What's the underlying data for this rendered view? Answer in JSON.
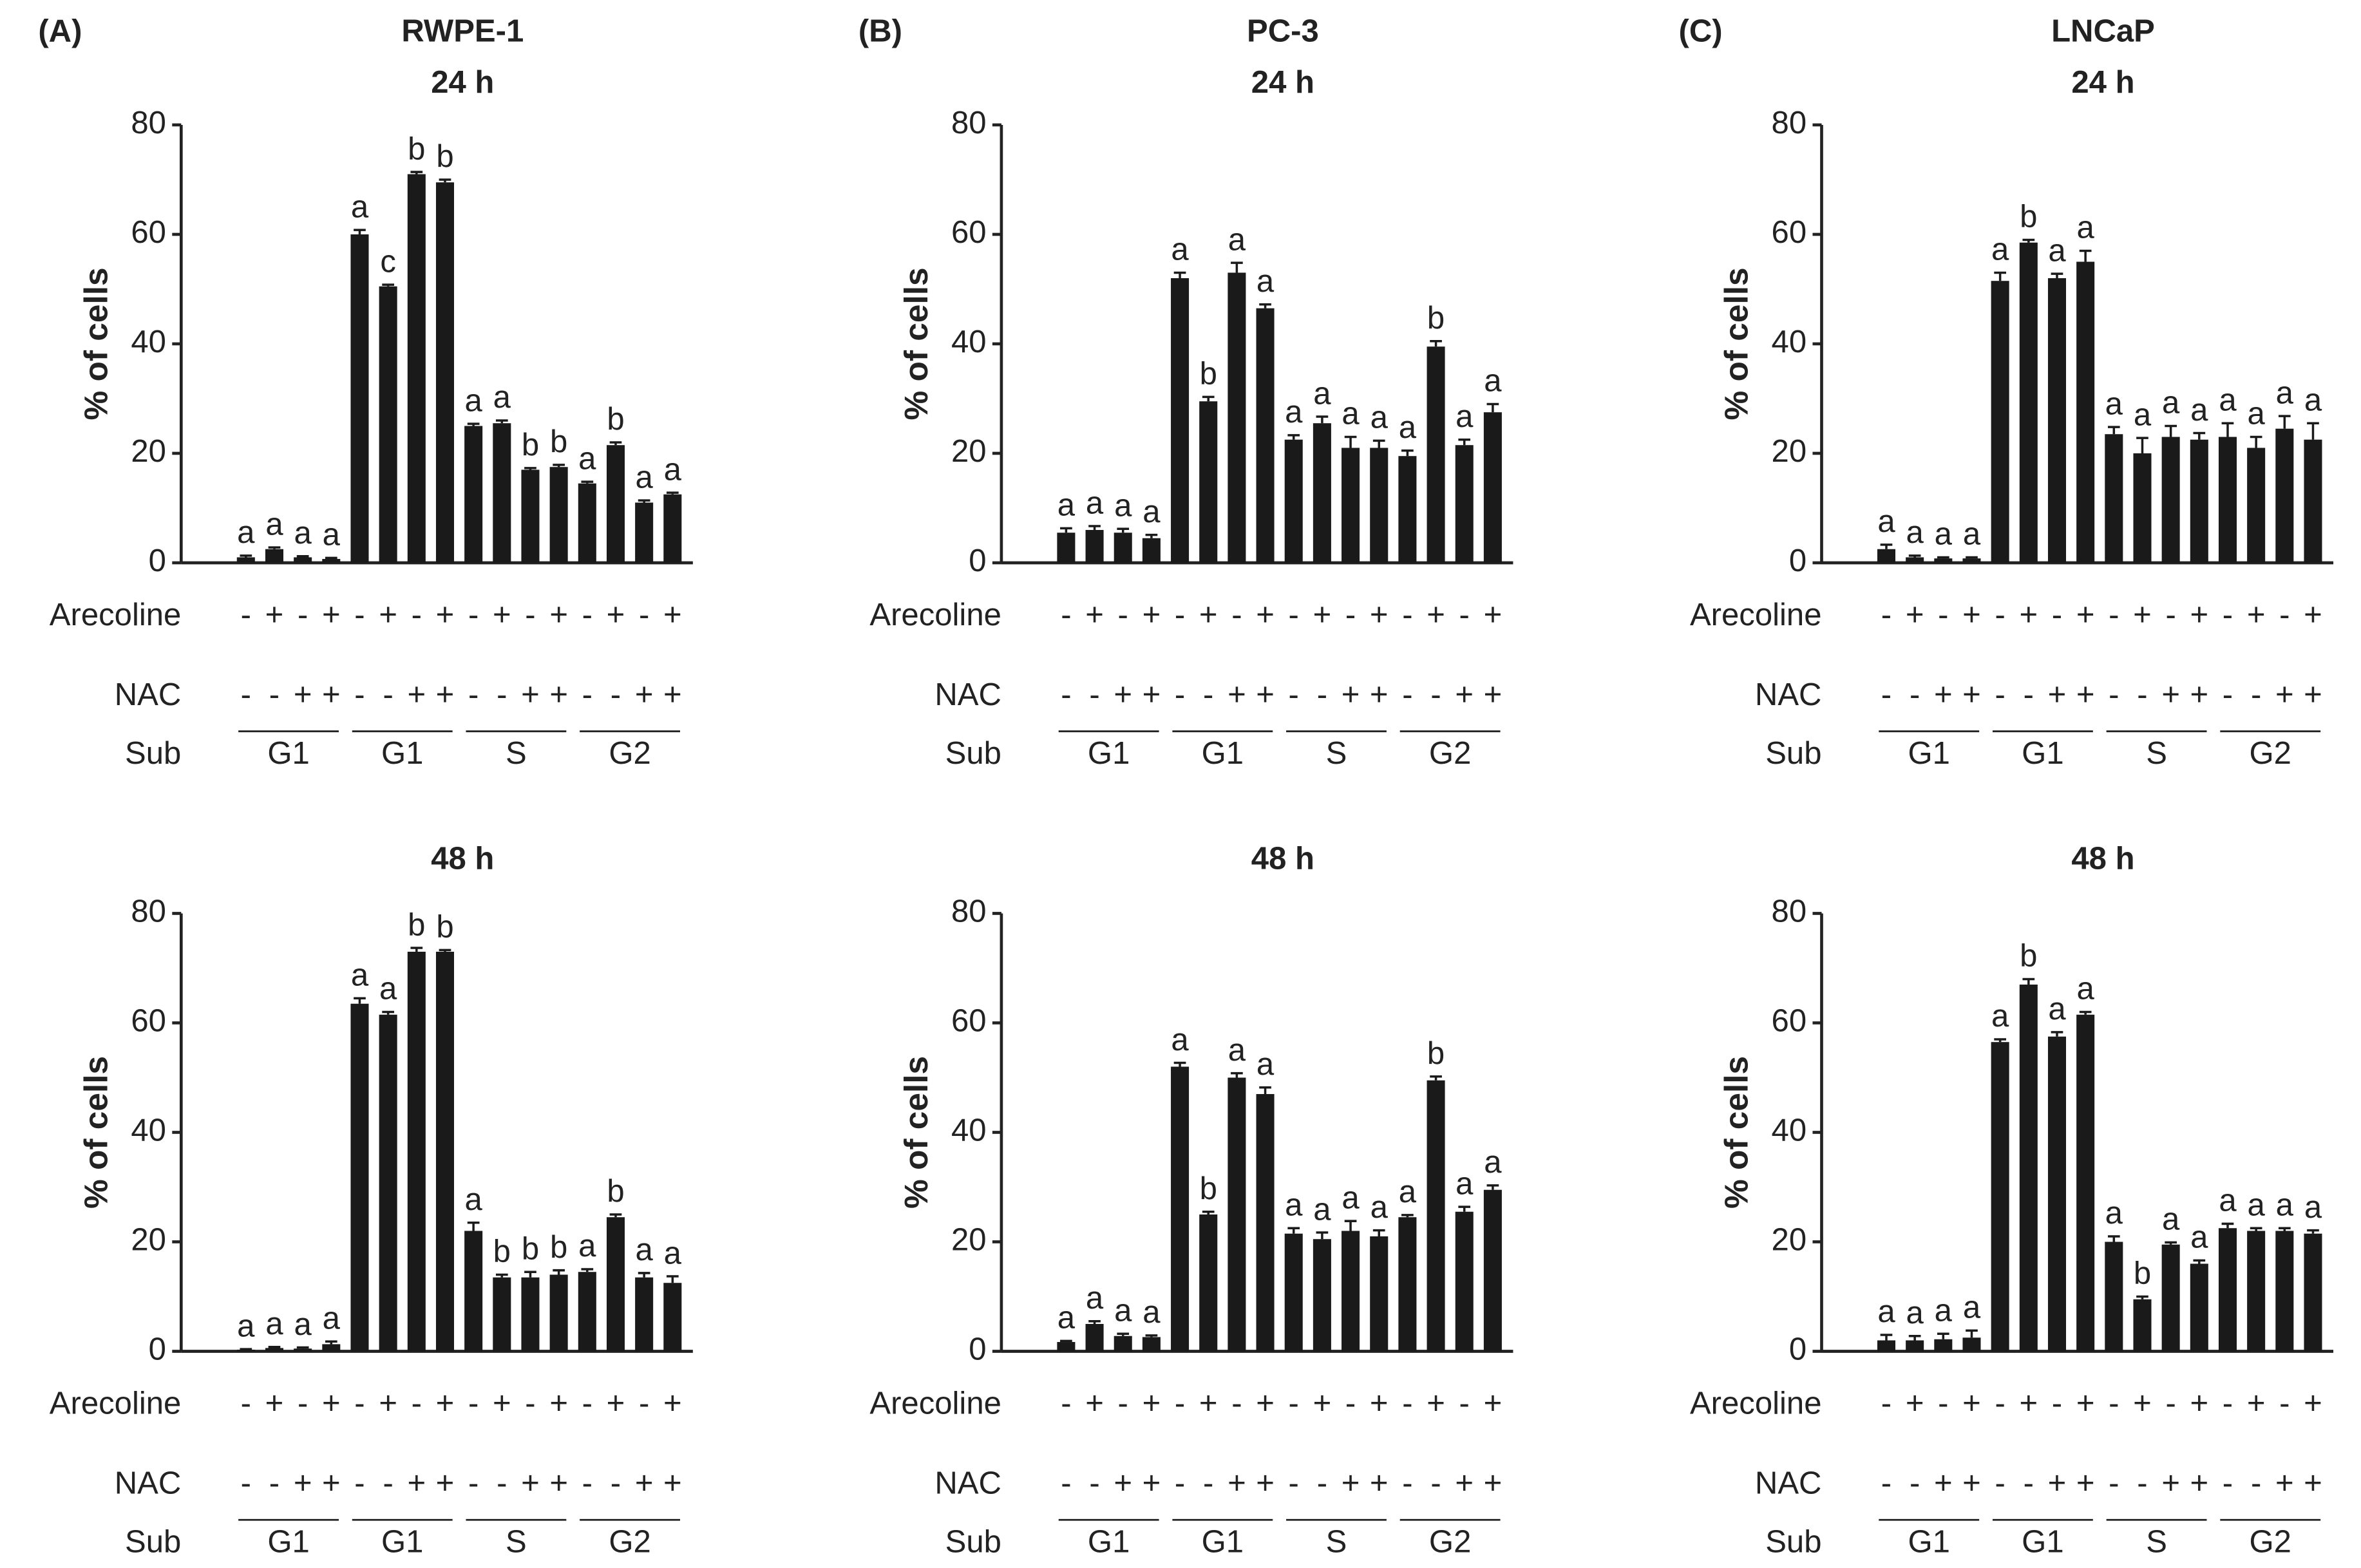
{
  "chart_data": [
    {
      "type": "bar",
      "panel": "(A)",
      "title": "RWPE-1",
      "subtitle": "24 h",
      "ylabel": "% of cells",
      "ylim": [
        0,
        80
      ],
      "yticks": [
        0,
        20,
        40,
        60,
        80
      ],
      "color": "#1a1a1a",
      "values": [
        1,
        2.5,
        1,
        0.7,
        60,
        50.5,
        71,
        69.5,
        25,
        25.5,
        17,
        17.5,
        14.5,
        21.5,
        11,
        12.5
      ],
      "errors": [
        0.3,
        0.3,
        0.2,
        0.2,
        0.8,
        0.3,
        0.4,
        0.5,
        0.4,
        0.5,
        0.3,
        0.4,
        0.3,
        0.5,
        0.4,
        0.3
      ],
      "letters": [
        "a",
        "a",
        "a",
        "a",
        "a",
        "c",
        "b",
        "b",
        "a",
        "a",
        "b",
        "b",
        "a",
        "b",
        "a",
        "a"
      ],
      "arecoline": [
        "-",
        "+",
        "-",
        "+",
        "-",
        "+",
        "-",
        "+",
        "-",
        "+",
        "-",
        "+",
        "-",
        "+",
        "-",
        "+"
      ],
      "nac": [
        "-",
        "-",
        "+",
        "+",
        "-",
        "-",
        "+",
        "+",
        "-",
        "-",
        "+",
        "+",
        "-",
        "-",
        "+",
        "+"
      ],
      "row_labels": [
        "Arecoline",
        "NAC",
        "Sub"
      ],
      "groups": [
        "G1",
        "G1",
        "S",
        "G2"
      ]
    },
    {
      "type": "bar",
      "panel": "(B)",
      "title": "PC-3",
      "subtitle": "24 h",
      "ylabel": "% of cells",
      "ylim": [
        0,
        80
      ],
      "yticks": [
        0,
        20,
        40,
        60,
        80
      ],
      "color": "#1a1a1a",
      "values": [
        5.5,
        6,
        5.5,
        4.5,
        52,
        29.5,
        53,
        46.5,
        22.5,
        25.5,
        21,
        21,
        19.5,
        39.5,
        21.5,
        27.5
      ],
      "errors": [
        0.8,
        0.7,
        0.7,
        0.6,
        1,
        0.8,
        1.8,
        0.7,
        0.8,
        1.2,
        2,
        1.3,
        1,
        1,
        1,
        1.5
      ],
      "letters": [
        "a",
        "a",
        "a",
        "a",
        "a",
        "b",
        "a",
        "a",
        "a",
        "a",
        "a",
        "a",
        "a",
        "b",
        "a",
        "a"
      ],
      "arecoline": [
        "-",
        "+",
        "-",
        "+",
        "-",
        "+",
        "-",
        "+",
        "-",
        "+",
        "-",
        "+",
        "-",
        "+",
        "-",
        "+"
      ],
      "nac": [
        "-",
        "-",
        "+",
        "+",
        "-",
        "-",
        "+",
        "+",
        "-",
        "-",
        "+",
        "+",
        "-",
        "-",
        "+",
        "+"
      ],
      "row_labels": [
        "Arecoline",
        "NAC",
        "Sub"
      ],
      "groups": [
        "G1",
        "G1",
        "S",
        "G2"
      ]
    },
    {
      "type": "bar",
      "panel": "(C)",
      "title": "LNCaP",
      "subtitle": "24 h",
      "ylabel": "% of cells",
      "ylim": [
        0,
        80
      ],
      "yticks": [
        0,
        20,
        40,
        60,
        80
      ],
      "color": "#1a1a1a",
      "values": [
        2.5,
        1,
        0.8,
        0.8,
        51.5,
        58.5,
        52,
        55,
        23.5,
        20,
        23,
        22.5,
        23,
        21,
        24.5,
        22.5
      ],
      "errors": [
        0.8,
        0.3,
        0.2,
        0.2,
        1.5,
        0.5,
        0.8,
        2,
        1.3,
        2.8,
        2,
        1.2,
        2.5,
        2,
        2.3,
        3
      ],
      "letters": [
        "a",
        "a",
        "a",
        "a",
        "a",
        "b",
        "a",
        "a",
        "a",
        "a",
        "a",
        "a",
        "a",
        "a",
        "a",
        "a"
      ],
      "arecoline": [
        "-",
        "+",
        "-",
        "+",
        "-",
        "+",
        "-",
        "+",
        "-",
        "+",
        "-",
        "+",
        "-",
        "+",
        "-",
        "+"
      ],
      "nac": [
        "-",
        "-",
        "+",
        "+",
        "-",
        "-",
        "+",
        "+",
        "-",
        "-",
        "+",
        "+",
        "-",
        "-",
        "+",
        "+"
      ],
      "row_labels": [
        "Arecoline",
        "NAC",
        "Sub"
      ],
      "groups": [
        "G1",
        "G1",
        "S",
        "G2"
      ]
    },
    {
      "type": "bar",
      "subtitle": "48 h",
      "ylabel": "% of cells",
      "ylim": [
        0,
        80
      ],
      "yticks": [
        0,
        20,
        40,
        60,
        80
      ],
      "color": "#1a1a1a",
      "values": [
        0.3,
        0.6,
        0.5,
        1.3,
        63.5,
        61.5,
        73,
        73,
        22,
        13.5,
        13.5,
        14,
        14.5,
        24.5,
        13.5,
        12.5
      ],
      "errors": [
        0.1,
        0.2,
        0.2,
        0.5,
        1,
        0.5,
        0.7,
        0.3,
        1.5,
        0.5,
        1,
        0.8,
        0.5,
        0.5,
        0.8,
        1.2
      ],
      "letters": [
        "a",
        "a",
        "a",
        "a",
        "a",
        "a",
        "b",
        "b",
        "a",
        "b",
        "b",
        "b",
        "a",
        "b",
        "a",
        "a"
      ],
      "arecoline": [
        "-",
        "+",
        "-",
        "+",
        "-",
        "+",
        "-",
        "+",
        "-",
        "+",
        "-",
        "+",
        "-",
        "+",
        "-",
        "+"
      ],
      "nac": [
        "-",
        "-",
        "+",
        "+",
        "-",
        "-",
        "+",
        "+",
        "-",
        "-",
        "+",
        "+",
        "-",
        "-",
        "+",
        "+"
      ],
      "row_labels": [
        "Arecoline",
        "NAC",
        "Sub"
      ],
      "groups": [
        "G1",
        "G1",
        "S",
        "G2"
      ]
    },
    {
      "type": "bar",
      "subtitle": "48 h",
      "ylabel": "% of cells",
      "ylim": [
        0,
        80
      ],
      "yticks": [
        0,
        20,
        40,
        60,
        80
      ],
      "color": "#1a1a1a",
      "values": [
        1.7,
        5,
        2.8,
        2.6,
        52,
        25,
        50,
        47,
        21.5,
        20.5,
        22,
        21,
        24.5,
        49.5,
        25.5,
        29.5
      ],
      "errors": [
        0.2,
        0.5,
        0.4,
        0.3,
        0.7,
        0.5,
        0.8,
        1.2,
        1,
        1.2,
        1.8,
        1.1,
        0.4,
        0.7,
        0.9,
        0.8
      ],
      "letters": [
        "a",
        "a",
        "a",
        "a",
        "a",
        "b",
        "a",
        "a",
        "a",
        "a",
        "a",
        "a",
        "a",
        "b",
        "a",
        "a"
      ],
      "arecoline": [
        "-",
        "+",
        "-",
        "+",
        "-",
        "+",
        "-",
        "+",
        "-",
        "+",
        "-",
        "+",
        "-",
        "+",
        "-",
        "+"
      ],
      "nac": [
        "-",
        "-",
        "+",
        "+",
        "-",
        "-",
        "+",
        "+",
        "-",
        "-",
        "+",
        "+",
        "-",
        "-",
        "+",
        "+"
      ],
      "row_labels": [
        "Arecoline",
        "NAC",
        "Sub"
      ],
      "groups": [
        "G1",
        "G1",
        "S",
        "G2"
      ]
    },
    {
      "type": "bar",
      "subtitle": "48 h",
      "ylabel": "% of cells",
      "ylim": [
        0,
        80
      ],
      "yticks": [
        0,
        20,
        40,
        60,
        80
      ],
      "color": "#1a1a1a",
      "values": [
        2,
        2,
        2.2,
        2.5,
        56.5,
        67,
        57.5,
        61.5,
        20,
        9.5,
        19.5,
        16,
        22.5,
        22,
        22,
        21.5
      ],
      "errors": [
        1,
        0.8,
        1,
        1.3,
        0.5,
        1,
        0.8,
        0.5,
        1,
        0.5,
        0.4,
        0.6,
        0.8,
        0.5,
        0.5,
        0.6
      ],
      "letters": [
        "a",
        "a",
        "a",
        "a",
        "a",
        "b",
        "a",
        "a",
        "a",
        "b",
        "a",
        "a",
        "a",
        "a",
        "a",
        "a"
      ],
      "arecoline": [
        "-",
        "+",
        "-",
        "+",
        "-",
        "+",
        "-",
        "+",
        "-",
        "+",
        "-",
        "+",
        "-",
        "+",
        "-",
        "+"
      ],
      "nac": [
        "-",
        "-",
        "+",
        "+",
        "-",
        "-",
        "+",
        "+",
        "-",
        "-",
        "+",
        "+",
        "-",
        "-",
        "+",
        "+"
      ],
      "row_labels": [
        "Arecoline",
        "NAC",
        "Sub"
      ],
      "groups": [
        "G1",
        "G1",
        "S",
        "G2"
      ]
    }
  ]
}
